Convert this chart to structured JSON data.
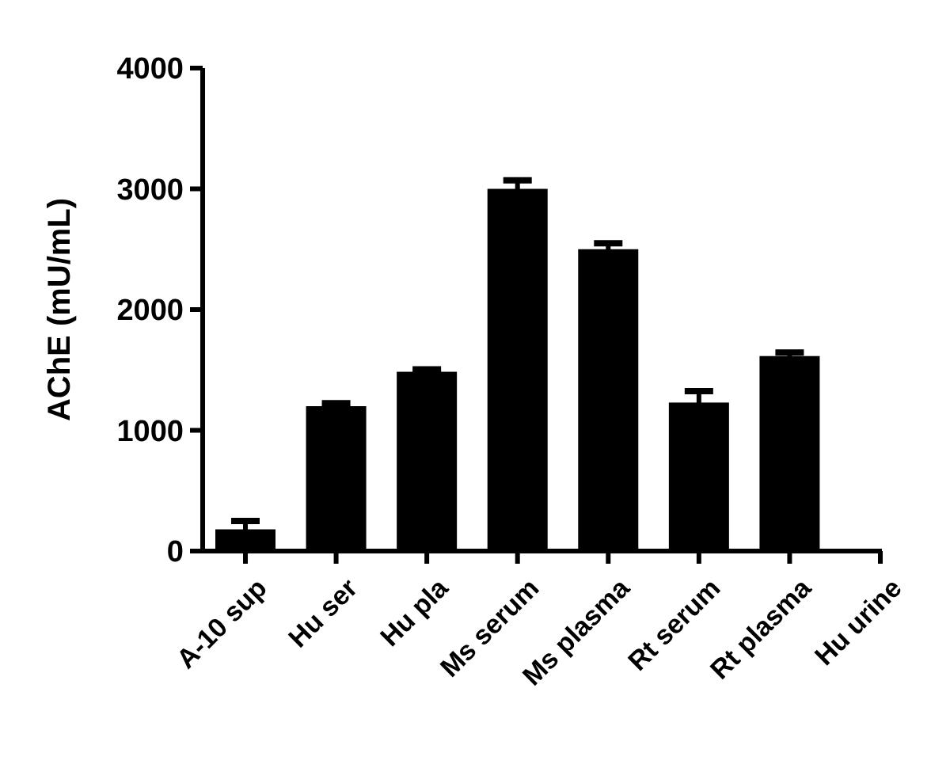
{
  "chart_data": {
    "type": "bar",
    "ylabel": "AChE (mU/mL)",
    "categories": [
      "A-10 sup",
      "Hu ser",
      "Hu pla",
      "Ms serum",
      "Ms plasma",
      "Rt serum",
      "Rt plasma",
      "Hu urine"
    ],
    "values": [
      180,
      1200,
      1485,
      3000,
      2500,
      1230,
      1615,
      0
    ],
    "errors": [
      70,
      25,
      20,
      70,
      50,
      95,
      30,
      null
    ],
    "color": "#000000",
    "ylim": [
      0,
      4000
    ],
    "yticks": [
      0,
      1000,
      2000,
      3000,
      4000
    ]
  }
}
